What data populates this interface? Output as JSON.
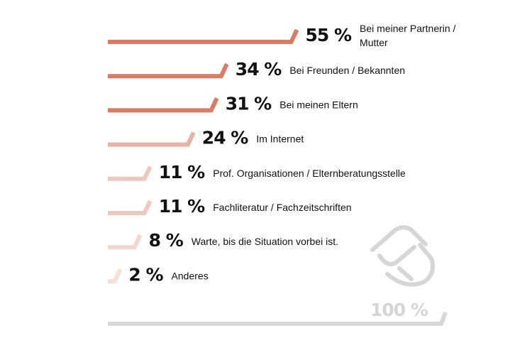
{
  "chart_data": {
    "type": "bar",
    "orientation": "horizontal",
    "unit": "%",
    "max": 100,
    "categories": [
      [
        "Bei meiner Partnerin /",
        "Mutter"
      ],
      [
        "Bei Freunden / Bekannten"
      ],
      [
        "Bei meinen Eltern"
      ],
      [
        "Im Internet"
      ],
      [
        "Prof. Organisationen / Elternberatungsstelle"
      ],
      [
        "Fachliteratur / Fachzeitschriften"
      ],
      [
        "Warte, bis die Situation vorbei ist."
      ],
      [
        "Anderes"
      ]
    ],
    "values": [
      55,
      34,
      31,
      24,
      11,
      11,
      8,
      2
    ],
    "value_labels": [
      "55 %",
      "34 %",
      "31 %",
      "24 %",
      "11 %",
      "11 %",
      "8 %",
      "2 %"
    ],
    "colors": [
      "#de7a62",
      "#de7a62",
      "#de7a62",
      "#e9b2a3",
      "#efc8bd",
      "#efc8bd",
      "#f3d6ce",
      "#f6e0d9"
    ],
    "total": {
      "value": 100,
      "label": "100 %",
      "color": "#d6d6d6"
    },
    "icon": "hands-icon"
  }
}
